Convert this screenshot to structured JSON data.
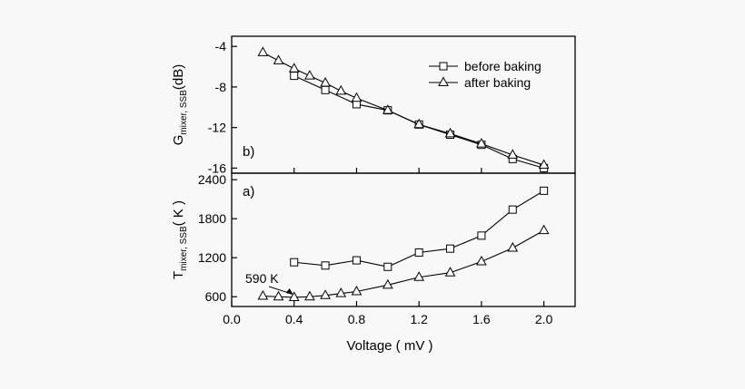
{
  "chart_data": [
    {
      "type": "line",
      "panel_label": "b)",
      "ylabel": "G",
      "ylabel_sub": "mixer, SSB",
      "ylabel_unit": "(dB)",
      "xlim": [
        0.0,
        2.2
      ],
      "ylim": [
        -16.5,
        -3.0
      ],
      "yticks": [
        -4,
        -8,
        -12,
        -16
      ],
      "ytick_labels": [
        "-4",
        "-8",
        "-12",
        "-16"
      ],
      "legend_position": "top-right",
      "series": [
        {
          "name": "before baking",
          "marker": "square",
          "x": [
            0.4,
            0.6,
            0.8,
            1.0,
            1.2,
            1.4,
            1.6,
            1.8,
            2.0
          ],
          "y": [
            -6.9,
            -8.3,
            -9.7,
            -10.3,
            -11.7,
            -12.7,
            -13.7,
            -15.1,
            -16.0
          ]
        },
        {
          "name": "after baking",
          "marker": "triangle",
          "x": [
            0.2,
            0.3,
            0.4,
            0.5,
            0.6,
            0.7,
            0.8,
            1.0,
            1.2,
            1.4,
            1.6,
            1.8,
            2.0
          ],
          "y": [
            -4.6,
            -5.4,
            -6.2,
            -6.9,
            -7.6,
            -8.4,
            -9.1,
            -10.3,
            -11.7,
            -12.6,
            -13.6,
            -14.7,
            -15.7
          ]
        }
      ]
    },
    {
      "type": "line",
      "panel_label": "a)",
      "ylabel": "T",
      "ylabel_sub": "mixer, SSB",
      "ylabel_unit": "( K )",
      "xlabel": "Voltage ( mV )",
      "xlim": [
        0.0,
        2.2
      ],
      "ylim": [
        450,
        2500
      ],
      "xticks": [
        0.0,
        0.4,
        0.8,
        1.2,
        1.6,
        2.0
      ],
      "xtick_labels": [
        "0.0",
        "0.4",
        "0.8",
        "1.2",
        "1.6",
        "2.0"
      ],
      "yticks": [
        600,
        1200,
        1800,
        2400
      ],
      "ytick_labels": [
        "600",
        "1200",
        "1800",
        "2400"
      ],
      "annotation": {
        "text": "590 K",
        "x": 0.4,
        "y": 590
      },
      "series": [
        {
          "name": "before baking",
          "marker": "square",
          "x": [
            0.4,
            0.6,
            0.8,
            1.0,
            1.2,
            1.4,
            1.6,
            1.8,
            2.0
          ],
          "y": [
            1130,
            1080,
            1160,
            1060,
            1280,
            1340,
            1540,
            1940,
            2230
          ]
        },
        {
          "name": "after baking",
          "marker": "triangle",
          "x": [
            0.2,
            0.3,
            0.4,
            0.5,
            0.6,
            0.7,
            0.8,
            1.0,
            1.2,
            1.4,
            1.6,
            1.8,
            2.0
          ],
          "y": [
            610,
            600,
            590,
            600,
            620,
            650,
            680,
            780,
            900,
            970,
            1140,
            1350,
            1620
          ]
        }
      ]
    }
  ]
}
